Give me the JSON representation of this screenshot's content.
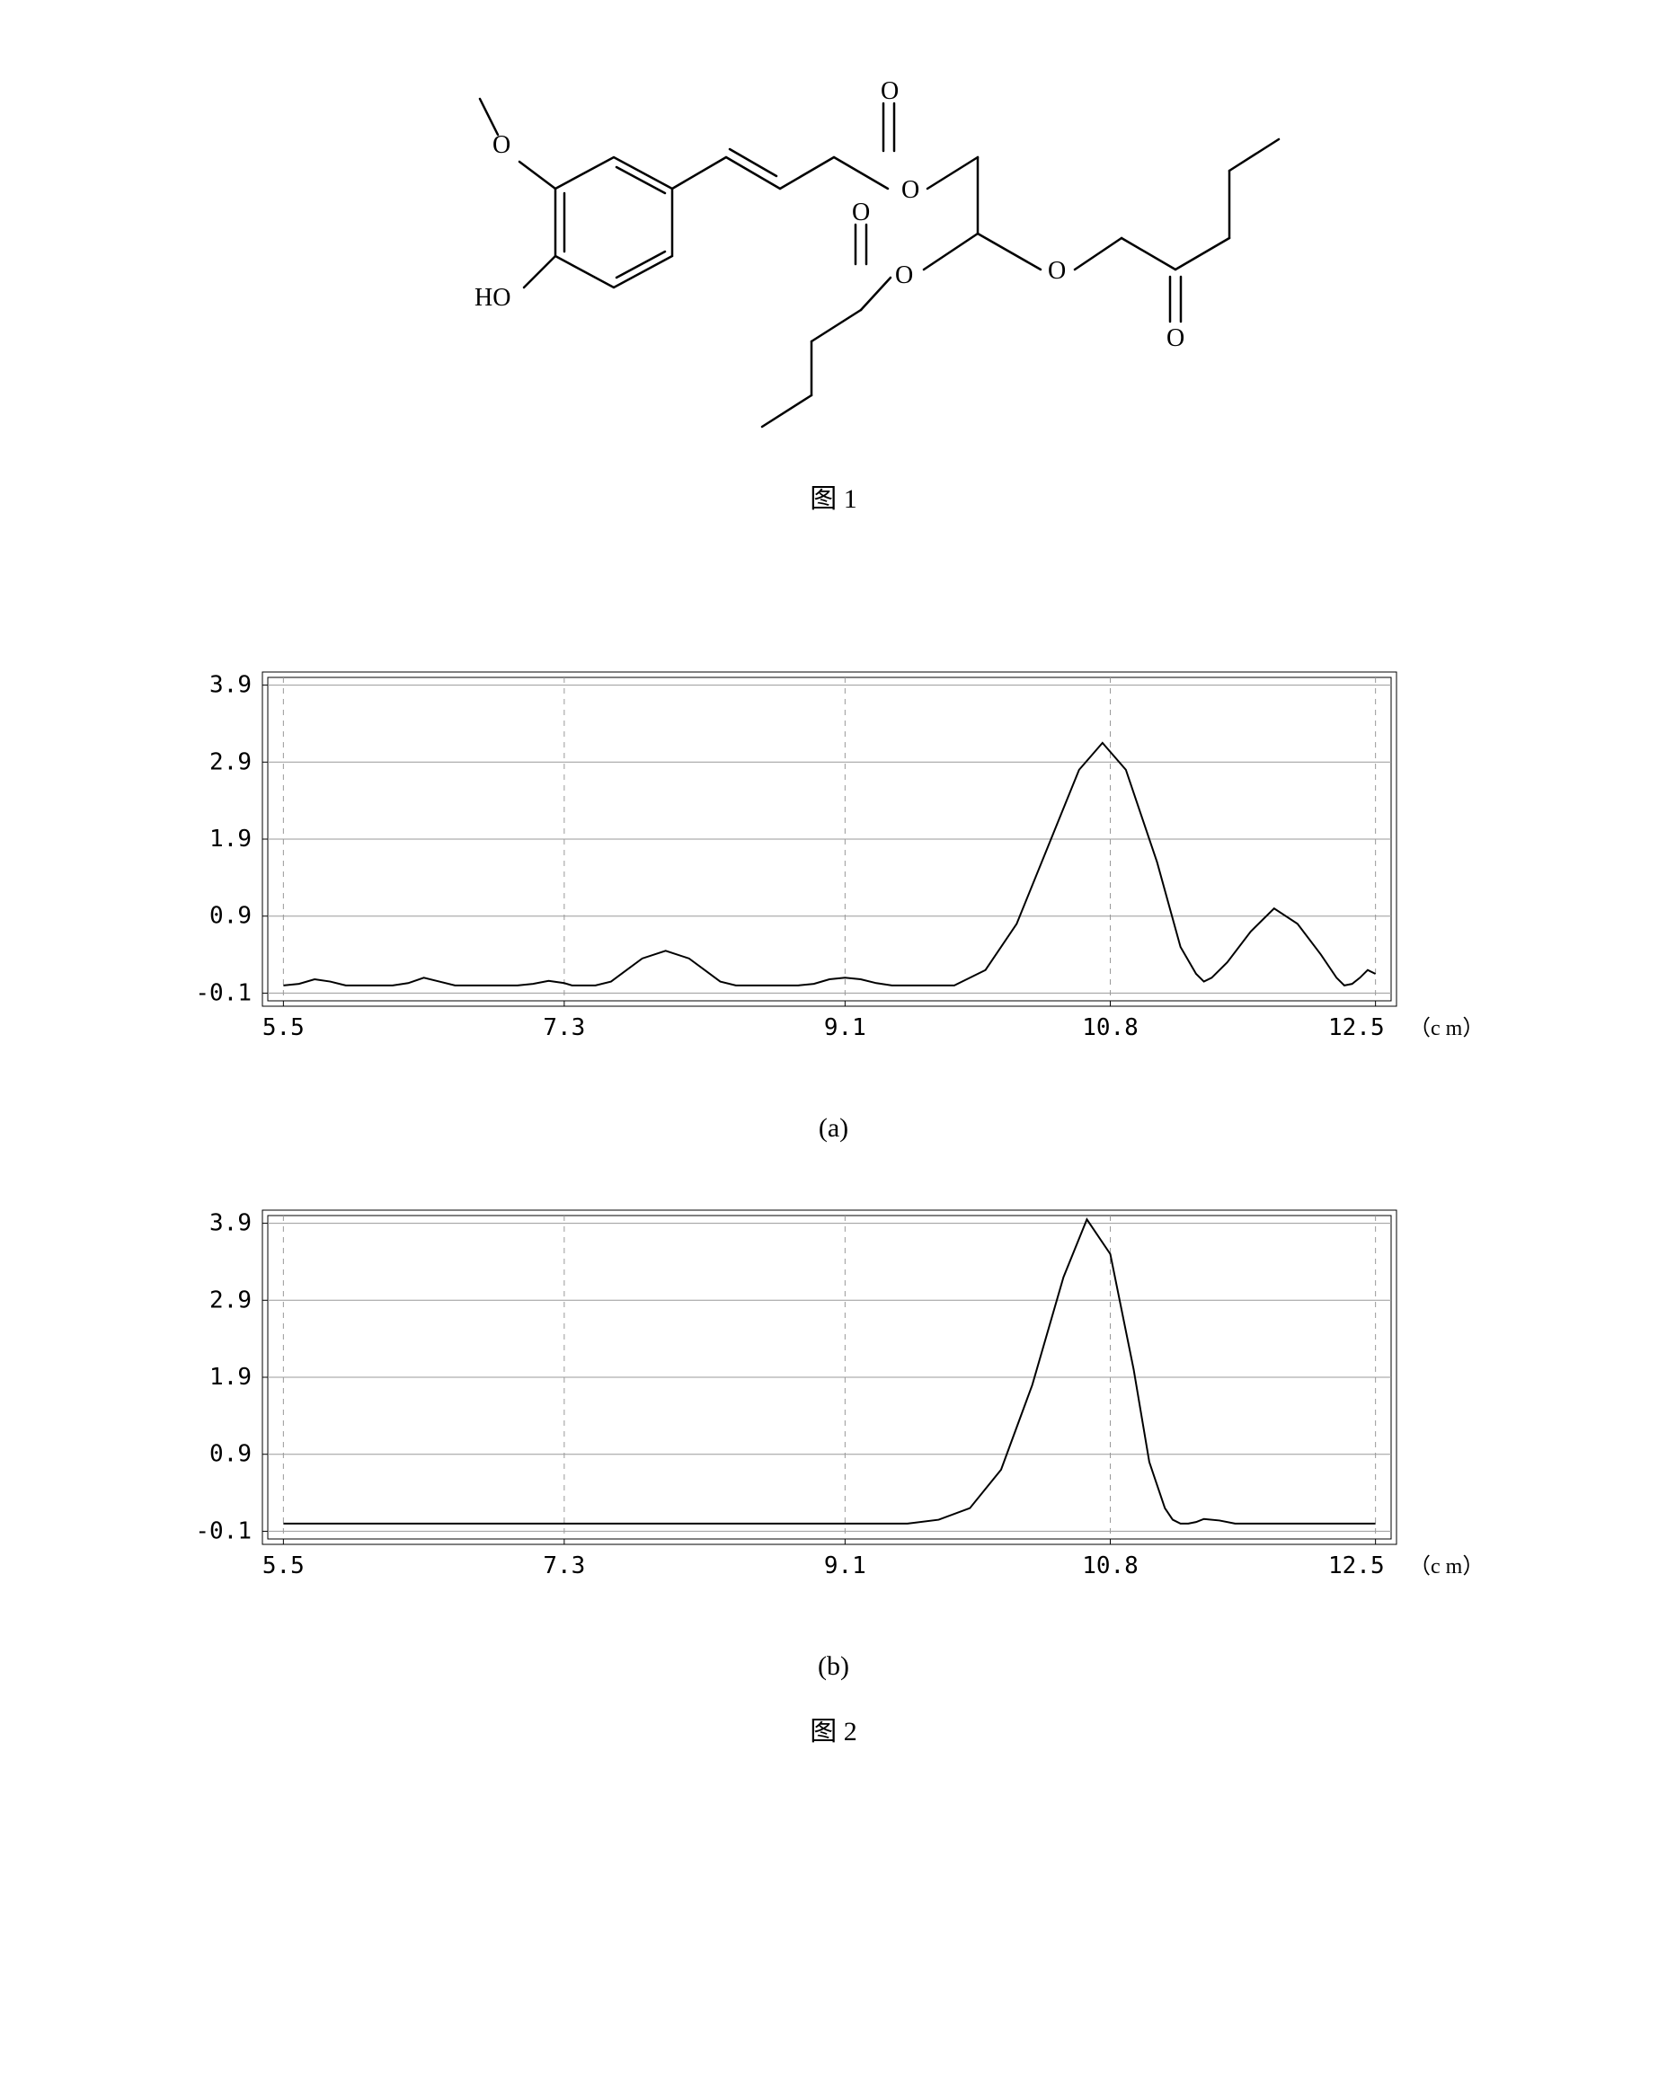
{
  "figure1": {
    "caption": "图 1",
    "structure": {
      "type": "chemical_structure",
      "stroke_color": "#000000",
      "stroke_width": 2.5,
      "background": "#ffffff",
      "labels": [
        "O",
        "O",
        "O",
        "O",
        "O",
        "O",
        "O",
        "HO"
      ],
      "description": "Ferulic acid glyceryl dibutyrate ester"
    }
  },
  "figure2": {
    "caption": "图 2",
    "sub_a": "(a)",
    "sub_b": "(b)",
    "chart_a": {
      "type": "line",
      "x_ticks": [
        "5.5",
        "7.3",
        "9.1",
        "10.8",
        "12.5"
      ],
      "x_unit": "（c m）",
      "y_ticks": [
        "-0.1",
        "0.9",
        "1.9",
        "2.9",
        "3.9"
      ],
      "xlim": [
        5.4,
        12.6
      ],
      "ylim": [
        -0.2,
        4.0
      ],
      "background_color": "#ffffff",
      "grid_color": "#999999",
      "line_color": "#000000",
      "line_width": 2,
      "data": [
        [
          5.5,
          0.0
        ],
        [
          5.6,
          0.02
        ],
        [
          5.7,
          0.08
        ],
        [
          5.8,
          0.05
        ],
        [
          5.9,
          0.0
        ],
        [
          6.2,
          0.0
        ],
        [
          6.3,
          0.03
        ],
        [
          6.4,
          0.1
        ],
        [
          6.5,
          0.05
        ],
        [
          6.6,
          0.0
        ],
        [
          7.0,
          0.0
        ],
        [
          7.1,
          0.02
        ],
        [
          7.2,
          0.06
        ],
        [
          7.3,
          0.03
        ],
        [
          7.35,
          0.0
        ],
        [
          7.5,
          0.0
        ],
        [
          7.6,
          0.05
        ],
        [
          7.7,
          0.2
        ],
        [
          7.8,
          0.35
        ],
        [
          7.95,
          0.45
        ],
        [
          8.1,
          0.35
        ],
        [
          8.2,
          0.2
        ],
        [
          8.3,
          0.05
        ],
        [
          8.4,
          0.0
        ],
        [
          8.8,
          0.0
        ],
        [
          8.9,
          0.02
        ],
        [
          9.0,
          0.08
        ],
        [
          9.1,
          0.1
        ],
        [
          9.2,
          0.08
        ],
        [
          9.3,
          0.03
        ],
        [
          9.4,
          0.0
        ],
        [
          9.8,
          0.0
        ],
        [
          10.0,
          0.2
        ],
        [
          10.2,
          0.8
        ],
        [
          10.4,
          1.8
        ],
        [
          10.6,
          2.8
        ],
        [
          10.75,
          3.15
        ],
        [
          10.9,
          2.8
        ],
        [
          11.1,
          1.6
        ],
        [
          11.25,
          0.5
        ],
        [
          11.35,
          0.15
        ],
        [
          11.4,
          0.05
        ],
        [
          11.45,
          0.1
        ],
        [
          11.55,
          0.3
        ],
        [
          11.7,
          0.7
        ],
        [
          11.85,
          1.0
        ],
        [
          12.0,
          0.8
        ],
        [
          12.15,
          0.4
        ],
        [
          12.25,
          0.1
        ],
        [
          12.3,
          0.0
        ],
        [
          12.35,
          0.02
        ],
        [
          12.4,
          0.1
        ],
        [
          12.45,
          0.2
        ],
        [
          12.5,
          0.15
        ]
      ]
    },
    "chart_b": {
      "type": "line",
      "x_ticks": [
        "5.5",
        "7.3",
        "9.1",
        "10.8",
        "12.5"
      ],
      "x_unit": "（c m）",
      "y_ticks": [
        "-0.1",
        "0.9",
        "1.9",
        "2.9",
        "3.9"
      ],
      "xlim": [
        5.4,
        12.6
      ],
      "ylim": [
        -0.2,
        4.0
      ],
      "background_color": "#ffffff",
      "grid_color": "#999999",
      "line_color": "#000000",
      "line_width": 2,
      "data": [
        [
          5.5,
          0.0
        ],
        [
          9.5,
          0.0
        ],
        [
          9.7,
          0.05
        ],
        [
          9.9,
          0.2
        ],
        [
          10.1,
          0.7
        ],
        [
          10.3,
          1.8
        ],
        [
          10.5,
          3.2
        ],
        [
          10.65,
          3.95
        ],
        [
          10.8,
          3.5
        ],
        [
          10.95,
          2.0
        ],
        [
          11.05,
          0.8
        ],
        [
          11.15,
          0.2
        ],
        [
          11.2,
          0.05
        ],
        [
          11.25,
          0.0
        ],
        [
          11.3,
          0.0
        ],
        [
          11.35,
          0.02
        ],
        [
          11.4,
          0.06
        ],
        [
          11.5,
          0.04
        ],
        [
          11.6,
          0.0
        ],
        [
          12.5,
          0.0
        ]
      ]
    }
  }
}
